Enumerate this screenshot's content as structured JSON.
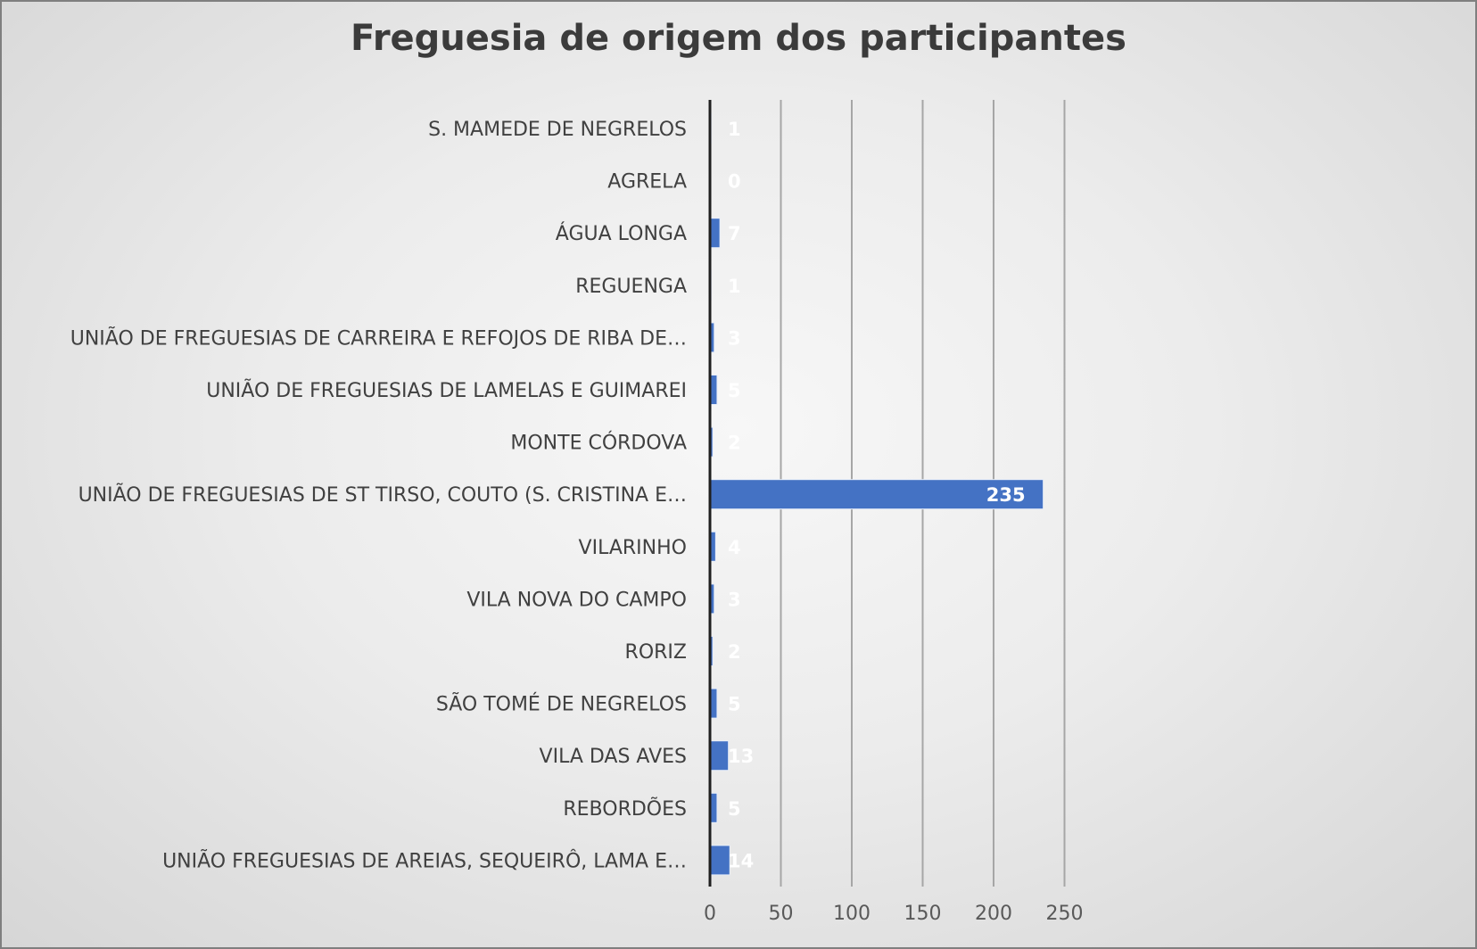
{
  "chart_data": {
    "type": "bar",
    "orientation": "horizontal",
    "title": "Freguesia de origem dos participantes",
    "xlabel": "",
    "ylabel": "",
    "xlim": [
      0,
      250
    ],
    "x_ticks": [
      0,
      50,
      100,
      150,
      200,
      250
    ],
    "grid": true,
    "legend": "none",
    "bar_color": "#4472C4",
    "data_label_color": "#FFFFFF",
    "categories": [
      "S. MAMEDE DE NEGRELOS",
      "AGRELA",
      "ÁGUA LONGA",
      "REGUENGA",
      "UNIÃO DE FREGUESIAS DE CARREIRA E REFOJOS DE RIBA DE…",
      "UNIÃO DE FREGUESIAS DE LAMELAS E GUIMAREI",
      "MONTE CÓRDOVA",
      "UNIÃO DE FREGUESIAS DE ST TIRSO, COUTO (S. CRISTINA E…",
      "VILARINHO",
      "VILA NOVA DO CAMPO",
      "RORIZ",
      "SÃO TOMÉ DE NEGRELOS",
      "VILA DAS AVES",
      "REBORDÕES",
      "UNIÃO FREGUESIAS DE AREIAS, SEQUEIRÔ, LAMA E…"
    ],
    "values": [
      1,
      0,
      7,
      1,
      3,
      5,
      2,
      235,
      4,
      3,
      2,
      5,
      13,
      5,
      14
    ]
  }
}
